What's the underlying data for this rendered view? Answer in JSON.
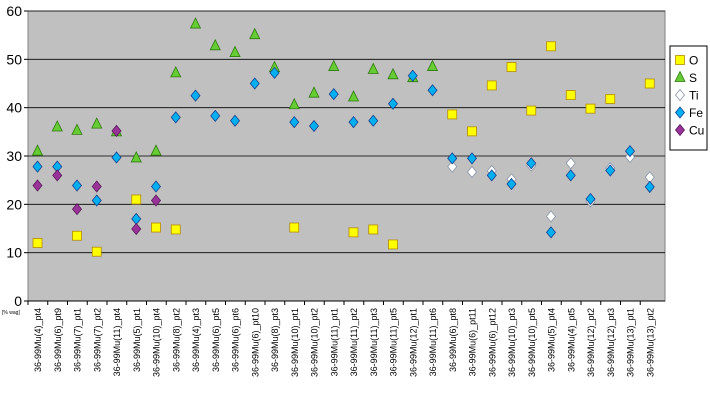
{
  "chart_data": {
    "type": "scatter",
    "title": "",
    "xlabel": "",
    "ylabel": "",
    "unit_label": "[% wag]",
    "ylim": [
      0,
      60
    ],
    "yticks": [
      0,
      10,
      20,
      30,
      40,
      50,
      60
    ],
    "grid": "horizontal",
    "legend_position": "right",
    "categories": [
      "36-99Mu(4)_pt4",
      "36-99Mu(6)_pt9",
      "36-99Mu(7)_pt1",
      "36-99Mu(7)_pt2",
      "36-99Mu(11)_pt4",
      "36-99Mu(5)_pt1",
      "36-99Mu(10)_pt4",
      "36-99Mu(8)_pt2",
      "36-99Mu(4)_pt3",
      "36-99Mu(6)_pt5",
      "36-99Mu(6)_pt6",
      "36-99Mu(6)_pt10",
      "36-99Mu(8)_pt3",
      "36-99Mu(10)_pt1",
      "36-99Mu(10)_pt2",
      "36-99Mu(11)_pt1",
      "36-99Mu(11)_pt2",
      "36-99Mu(11)_pt3",
      "36-99Mu(11)_pt5",
      "36-99Mu(12)_pt1",
      "36-99Mu(11)_pt6",
      "36-99Mu(6)_pt8",
      "36-99Mu(6)_pt11",
      "36-99Mu(6)_pt12",
      "36-99Mu(10)_pt3",
      "36-99Mu(10)_pt5",
      "36-99Mu(5)_pt4",
      "36-99Mu(4)_pt5",
      "36-99Mu(12)_pt2",
      "36-99Mu(12)_pt3",
      "36-99Mu(13)_pt1",
      "36-99Mu(13)_pt2"
    ],
    "series": [
      {
        "name": "O",
        "marker": "square",
        "color": "#ffff00",
        "stroke": "#b58a00",
        "values": [
          12,
          null,
          13.5,
          10.2,
          null,
          21,
          15.2,
          14.8,
          null,
          null,
          null,
          null,
          null,
          15.2,
          null,
          null,
          14.2,
          14.8,
          11.7,
          null,
          null,
          38.6,
          35.1,
          44.6,
          48.4,
          39.4,
          52.7,
          42.6,
          39.8,
          41.8,
          null,
          45
        ]
      },
      {
        "name": "S",
        "marker": "triangle",
        "color": "#66cc33",
        "stroke": "#2f7a10",
        "values": [
          31,
          36,
          35.3,
          36.6,
          35,
          29.6,
          31,
          47.2,
          57.3,
          52.8,
          51.4,
          55.1,
          48.3,
          40.6,
          43,
          48.5,
          42.2,
          47.9,
          46.8,
          46.2,
          48.5,
          null,
          null,
          null,
          null,
          null,
          null,
          null,
          null,
          null,
          null,
          null
        ]
      },
      {
        "name": "Ti",
        "marker": "diamond",
        "color": "#ffffff",
        "stroke": "#8a94a6",
        "values": [
          null,
          null,
          null,
          null,
          null,
          null,
          null,
          null,
          null,
          null,
          null,
          null,
          null,
          null,
          null,
          null,
          null,
          null,
          null,
          null,
          null,
          27.8,
          26.7,
          26.9,
          25.2,
          28,
          17.5,
          28.5,
          20.6,
          27.5,
          29.8,
          25.6
        ]
      },
      {
        "name": "Fe",
        "marker": "diamond",
        "color": "#00b0f0",
        "stroke": "#1b3f8f",
        "values": [
          27.8,
          27.8,
          23.9,
          20.8,
          29.7,
          17,
          23.7,
          38,
          42.5,
          38.3,
          37.3,
          45,
          47.2,
          37,
          36.2,
          42.8,
          37,
          37.3,
          40.8,
          46.6,
          43.6,
          29.5,
          29.5,
          26,
          24.2,
          28.5,
          14.2,
          26,
          21.1,
          27,
          31,
          23.6
        ]
      },
      {
        "name": "Cu",
        "marker": "diamond",
        "color": "#993399",
        "stroke": "#5a1a5a",
        "values": [
          23.9,
          26,
          19,
          23.7,
          35.2,
          14.9,
          20.8,
          null,
          null,
          null,
          null,
          null,
          null,
          null,
          null,
          null,
          null,
          null,
          null,
          null,
          null,
          null,
          null,
          null,
          null,
          null,
          null,
          null,
          null,
          null,
          null,
          null
        ]
      }
    ]
  }
}
